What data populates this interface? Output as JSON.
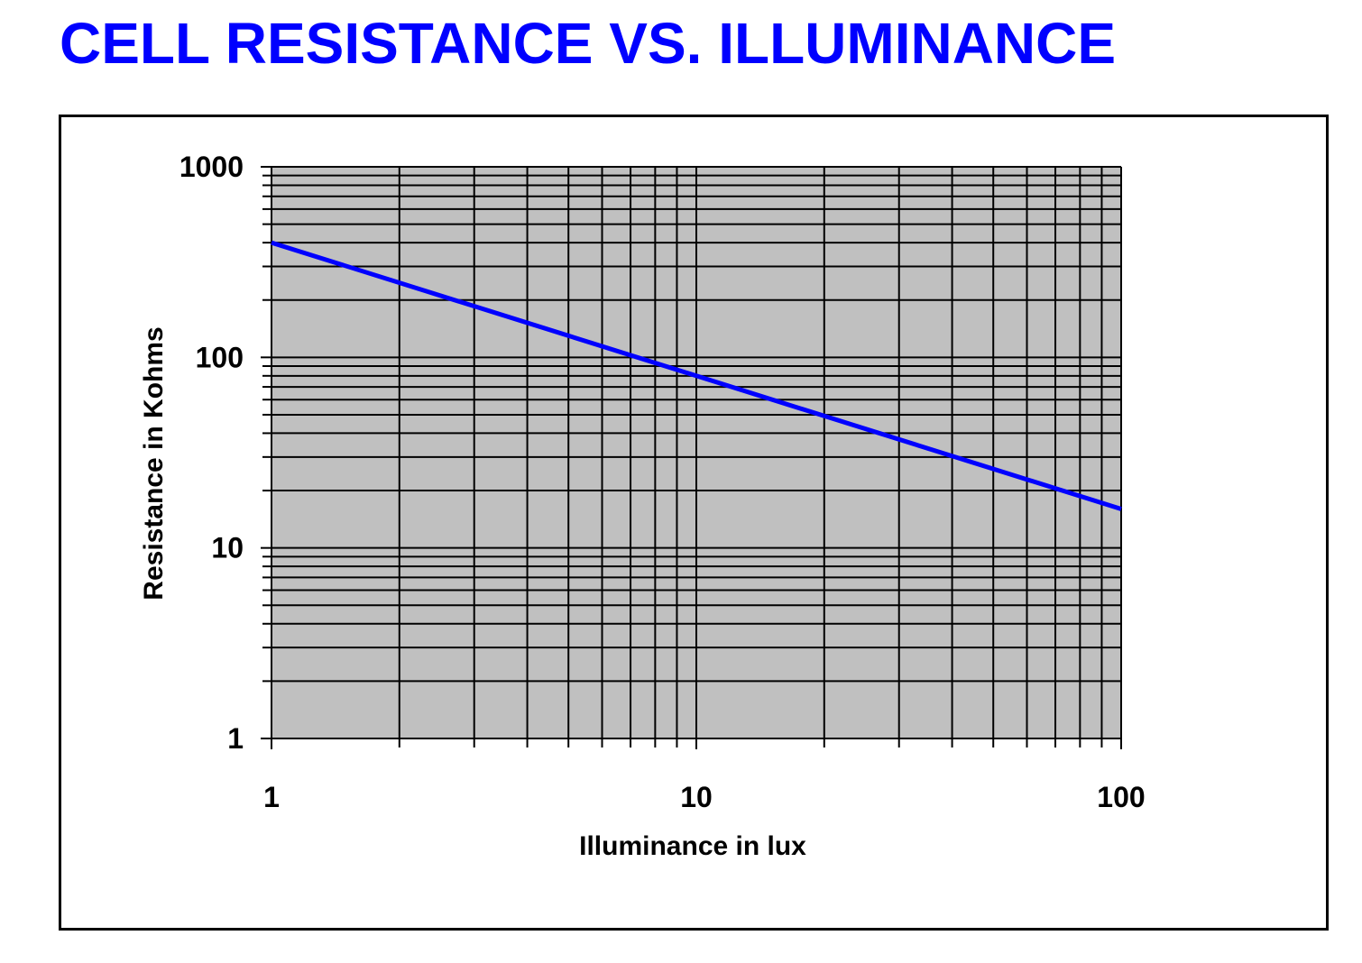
{
  "page": {
    "title": "CELL RESISTANCE VS. ILLUMINANCE",
    "title_color": "#0000ff"
  },
  "chart_data": {
    "type": "line",
    "x_scale": "log",
    "y_scale": "log",
    "xlabel": "Illuminance in lux",
    "ylabel": "Resistance in Kohms",
    "xlim": [
      1,
      100
    ],
    "ylim": [
      1,
      1000
    ],
    "x_ticks": [
      "1",
      "10",
      "100"
    ],
    "y_ticks": [
      "1",
      "10",
      "100",
      "1000"
    ],
    "x_tick_values": [
      1,
      10,
      100
    ],
    "y_tick_values": [
      1,
      10,
      100,
      1000
    ],
    "grid": true,
    "plot_background": "#c0c0c0",
    "series": [
      {
        "color": "#0000ff",
        "x": [
          1,
          100
        ],
        "y": [
          400,
          16
        ]
      }
    ]
  }
}
